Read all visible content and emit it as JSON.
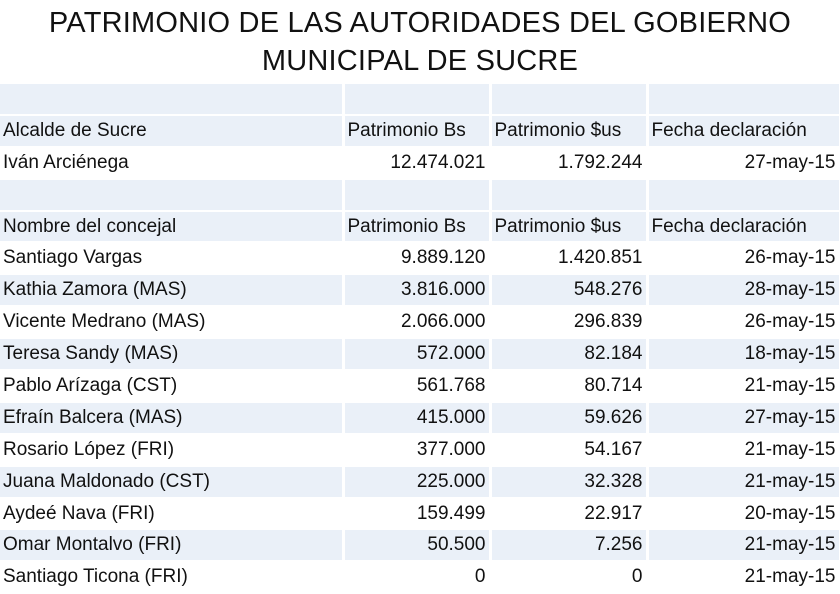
{
  "title": {
    "line1": "PATRIMONIO DE LAS AUTORIDADES DEL GOBIERNO",
    "line2": "MUNICIPAL DE SUCRE"
  },
  "mayor_section": {
    "headers": [
      "Alcalde de Sucre",
      "Patrimonio Bs",
      "Patrimonio $us",
      "Fecha declaración"
    ],
    "row": [
      "Iván Arciénega",
      "12.474.021",
      "1.792.244",
      "27-may-15"
    ]
  },
  "council_section": {
    "headers": [
      "Nombre del concejal",
      "Patrimonio Bs",
      "Patrimonio $us",
      "Fecha declaración"
    ],
    "rows": [
      [
        "Santiago Vargas",
        "9.889.120",
        "1.420.851",
        "26-may-15"
      ],
      [
        "Kathia Zamora (MAS)",
        "3.816.000",
        "548.276",
        "28-may-15"
      ],
      [
        "Vicente Medrano  (MAS)",
        "2.066.000",
        "296.839",
        "26-may-15"
      ],
      [
        "Teresa Sandy (MAS)",
        "572.000",
        "82.184",
        "18-may-15"
      ],
      [
        "Pablo Arízaga (CST)",
        "561.768",
        "80.714",
        "21-may-15"
      ],
      [
        "Efraín Balcera (MAS)",
        "415.000",
        "59.626",
        "27-may-15"
      ],
      [
        "Rosario López (FRI)",
        "377.000",
        "54.167",
        "21-may-15"
      ],
      [
        "Juana Maldonado (CST)",
        "225.000",
        "32.328",
        "21-may-15"
      ],
      [
        "Aydeé Nava (FRI)",
        "159.499",
        "22.917",
        "20-may-15"
      ],
      [
        "Omar Montalvo (FRI)",
        "50.500",
        "7.256",
        "21-may-15"
      ],
      [
        "Santiago Ticona (FRI)",
        "0",
        "0",
        "21-may-15"
      ]
    ]
  },
  "colors": {
    "band": "#eaf0f8",
    "background": "#ffffff",
    "text": "#111111"
  }
}
